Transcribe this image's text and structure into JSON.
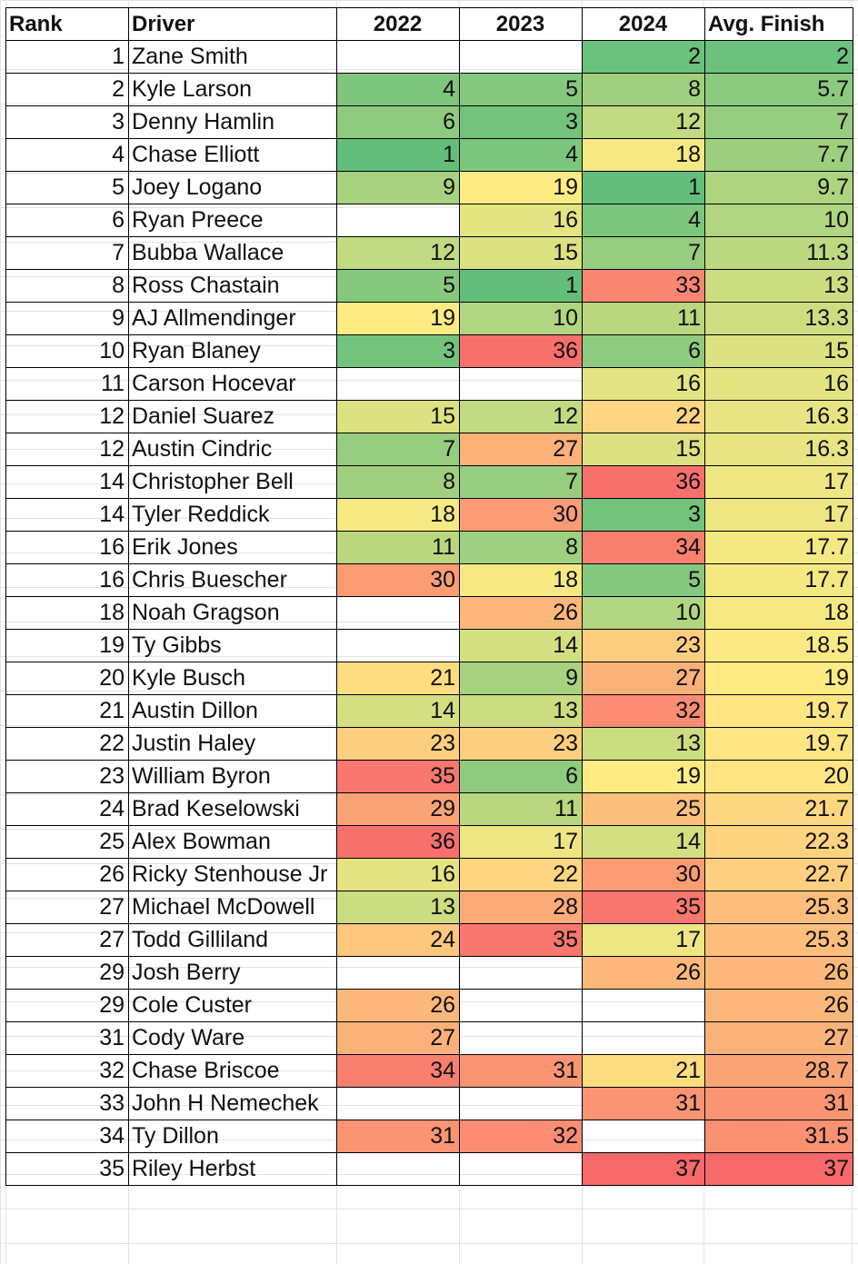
{
  "table": {
    "headers": [
      "Rank",
      "Driver",
      "2022",
      "2023",
      "2024",
      "Avg. Finish"
    ],
    "color_scale": {
      "low": "#63BE7B",
      "mid": "#FFEB84",
      "high": "#F8696B",
      "min": 1,
      "mid_value": 19,
      "max": 37
    },
    "rows": [
      {
        "rank": "1",
        "driver": "Zane Smith",
        "y2022": "",
        "y2023": "",
        "y2024": "2",
        "avg": "2"
      },
      {
        "rank": "2",
        "driver": "Kyle Larson",
        "y2022": "4",
        "y2023": "5",
        "y2024": "8",
        "avg": "5.7"
      },
      {
        "rank": "3",
        "driver": "Denny Hamlin",
        "y2022": "6",
        "y2023": "3",
        "y2024": "12",
        "avg": "7"
      },
      {
        "rank": "4",
        "driver": "Chase Elliott",
        "y2022": "1",
        "y2023": "4",
        "y2024": "18",
        "avg": "7.7"
      },
      {
        "rank": "5",
        "driver": "Joey Logano",
        "y2022": "9",
        "y2023": "19",
        "y2024": "1",
        "avg": "9.7"
      },
      {
        "rank": "6",
        "driver": "Ryan Preece",
        "y2022": "",
        "y2023": "16",
        "y2024": "4",
        "avg": "10"
      },
      {
        "rank": "7",
        "driver": "Bubba Wallace",
        "y2022": "12",
        "y2023": "15",
        "y2024": "7",
        "avg": "11.3"
      },
      {
        "rank": "8",
        "driver": "Ross Chastain",
        "y2022": "5",
        "y2023": "1",
        "y2024": "33",
        "avg": "13"
      },
      {
        "rank": "9",
        "driver": "AJ Allmendinger",
        "y2022": "19",
        "y2023": "10",
        "y2024": "11",
        "avg": "13.3"
      },
      {
        "rank": "10",
        "driver": "Ryan Blaney",
        "y2022": "3",
        "y2023": "36",
        "y2024": "6",
        "avg": "15"
      },
      {
        "rank": "11",
        "driver": "Carson Hocevar",
        "y2022": "",
        "y2023": "",
        "y2024": "16",
        "avg": "16"
      },
      {
        "rank": "12",
        "driver": "Daniel Suarez",
        "y2022": "15",
        "y2023": "12",
        "y2024": "22",
        "avg": "16.3"
      },
      {
        "rank": "12",
        "driver": "Austin Cindric",
        "y2022": "7",
        "y2023": "27",
        "y2024": "15",
        "avg": "16.3"
      },
      {
        "rank": "14",
        "driver": "Christopher Bell",
        "y2022": "8",
        "y2023": "7",
        "y2024": "36",
        "avg": "17"
      },
      {
        "rank": "14",
        "driver": "Tyler Reddick",
        "y2022": "18",
        "y2023": "30",
        "y2024": "3",
        "avg": "17"
      },
      {
        "rank": "16",
        "driver": "Erik Jones",
        "y2022": "11",
        "y2023": "8",
        "y2024": "34",
        "avg": "17.7"
      },
      {
        "rank": "16",
        "driver": "Chris Buescher",
        "y2022": "30",
        "y2023": "18",
        "y2024": "5",
        "avg": "17.7"
      },
      {
        "rank": "18",
        "driver": "Noah Gragson",
        "y2022": "",
        "y2023": "26",
        "y2024": "10",
        "avg": "18"
      },
      {
        "rank": "19",
        "driver": "Ty Gibbs",
        "y2022": "",
        "y2023": "14",
        "y2024": "23",
        "avg": "18.5"
      },
      {
        "rank": "20",
        "driver": "Kyle Busch",
        "y2022": "21",
        "y2023": "9",
        "y2024": "27",
        "avg": "19"
      },
      {
        "rank": "21",
        "driver": "Austin Dillon",
        "y2022": "14",
        "y2023": "13",
        "y2024": "32",
        "avg": "19.7"
      },
      {
        "rank": "22",
        "driver": "Justin Haley",
        "y2022": "23",
        "y2023": "23",
        "y2024": "13",
        "avg": "19.7"
      },
      {
        "rank": "23",
        "driver": "William Byron",
        "y2022": "35",
        "y2023": "6",
        "y2024": "19",
        "avg": "20"
      },
      {
        "rank": "24",
        "driver": "Brad Keselowski",
        "y2022": "29",
        "y2023": "11",
        "y2024": "25",
        "avg": "21.7"
      },
      {
        "rank": "25",
        "driver": "Alex Bowman",
        "y2022": "36",
        "y2023": "17",
        "y2024": "14",
        "avg": "22.3"
      },
      {
        "rank": "26",
        "driver": "Ricky Stenhouse Jr",
        "y2022": "16",
        "y2023": "22",
        "y2024": "30",
        "avg": "22.7"
      },
      {
        "rank": "27",
        "driver": "Michael McDowell",
        "y2022": "13",
        "y2023": "28",
        "y2024": "35",
        "avg": "25.3"
      },
      {
        "rank": "27",
        "driver": "Todd Gilliland",
        "y2022": "24",
        "y2023": "35",
        "y2024": "17",
        "avg": "25.3"
      },
      {
        "rank": "29",
        "driver": "Josh Berry",
        "y2022": "",
        "y2023": "",
        "y2024": "26",
        "avg": "26"
      },
      {
        "rank": "29",
        "driver": "Cole Custer",
        "y2022": "26",
        "y2023": "",
        "y2024": "",
        "avg": "26"
      },
      {
        "rank": "31",
        "driver": "Cody Ware",
        "y2022": "27",
        "y2023": "",
        "y2024": "",
        "avg": "27"
      },
      {
        "rank": "32",
        "driver": "Chase Briscoe",
        "y2022": "34",
        "y2023": "31",
        "y2024": "21",
        "avg": "28.7"
      },
      {
        "rank": "33",
        "driver": "John H Nemechek",
        "y2022": "",
        "y2023": "",
        "y2024": "31",
        "avg": "31"
      },
      {
        "rank": "34",
        "driver": "Ty Dillon",
        "y2022": "31",
        "y2023": "32",
        "y2024": "",
        "avg": "31.5"
      },
      {
        "rank": "35",
        "driver": "Riley Herbst",
        "y2022": "",
        "y2023": "",
        "y2024": "37",
        "avg": "37"
      }
    ]
  }
}
